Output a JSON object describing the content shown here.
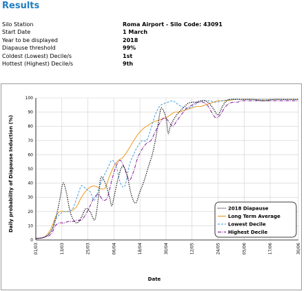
{
  "header": {
    "title": "Results"
  },
  "info": [
    {
      "label": "Silo Station",
      "value": "Roma Airport - Silo Code: 43091"
    },
    {
      "label": "Start Date",
      "value": "1 March"
    },
    {
      "label": "Year to be displayed",
      "value": "2018"
    },
    {
      "label": "Diapause threshold",
      "value": "99%"
    },
    {
      "label": "Coldest (Lowest) Decile/s",
      "value": "1st"
    },
    {
      "label": "Hottest (Highest) Decile/s",
      "value": "9th"
    }
  ],
  "chart_data": {
    "type": "line",
    "xlabel": "Date",
    "ylabel": "Daily probability of Diapause Induction (%)",
    "ylim": [
      0,
      100
    ],
    "yticks": [
      0,
      10,
      20,
      30,
      40,
      50,
      60,
      70,
      80,
      90,
      100
    ],
    "x_tick_labels": [
      "01/03",
      "13/03",
      "25/03",
      "06/04",
      "18/04",
      "30/04",
      "12/05",
      "24/05",
      "05/06",
      "17/06",
      "30/06"
    ],
    "x_days": [
      0,
      12,
      24,
      36,
      48,
      60,
      72,
      84,
      96,
      108,
      121
    ],
    "legend_position": "bottom-right",
    "series": [
      {
        "name": "2018 Diapause",
        "color": "#000000",
        "dash": "1.2,1.6",
        "points": [
          [
            0,
            1
          ],
          [
            4,
            2
          ],
          [
            7,
            6
          ],
          [
            9,
            14
          ],
          [
            11,
            28
          ],
          [
            12.5,
            40
          ],
          [
            14,
            34
          ],
          [
            15.5,
            22
          ],
          [
            17,
            15
          ],
          [
            19,
            12
          ],
          [
            21,
            16
          ],
          [
            23,
            22
          ],
          [
            25,
            20
          ],
          [
            27,
            14
          ],
          [
            28,
            20
          ],
          [
            29,
            32
          ],
          [
            30,
            44
          ],
          [
            32,
            40
          ],
          [
            34,
            30
          ],
          [
            35,
            24
          ],
          [
            36,
            30
          ],
          [
            38,
            44
          ],
          [
            40,
            52
          ],
          [
            42,
            46
          ],
          [
            44,
            32
          ],
          [
            46,
            26
          ],
          [
            48,
            34
          ],
          [
            50,
            42
          ],
          [
            52,
            52
          ],
          [
            54,
            62
          ],
          [
            56,
            78
          ],
          [
            57,
            88
          ],
          [
            58,
            93
          ],
          [
            60,
            86
          ],
          [
            61,
            75
          ],
          [
            62,
            80
          ],
          [
            64,
            86
          ],
          [
            66,
            90
          ],
          [
            68,
            93
          ],
          [
            70,
            96
          ],
          [
            72,
            97
          ],
          [
            74,
            97
          ],
          [
            76,
            98
          ],
          [
            78,
            98
          ],
          [
            80,
            96
          ],
          [
            82,
            92
          ],
          [
            84,
            88
          ],
          [
            86,
            94
          ],
          [
            88,
            98
          ],
          [
            90,
            99
          ],
          [
            95,
            99
          ],
          [
            100,
            99
          ],
          [
            105,
            98
          ],
          [
            110,
            99
          ],
          [
            115,
            99
          ],
          [
            121,
            99
          ]
        ]
      },
      {
        "name": "Long Term Average",
        "color": "#f0a030",
        "dash": "",
        "points": [
          [
            0,
            1
          ],
          [
            4,
            2
          ],
          [
            7,
            8
          ],
          [
            9,
            16
          ],
          [
            11,
            20
          ],
          [
            14,
            20
          ],
          [
            17,
            21
          ],
          [
            19,
            24
          ],
          [
            21,
            30
          ],
          [
            24,
            36
          ],
          [
            27,
            38
          ],
          [
            30,
            36
          ],
          [
            32,
            37
          ],
          [
            34,
            45
          ],
          [
            36,
            52
          ],
          [
            38,
            56
          ],
          [
            40,
            58
          ],
          [
            42,
            62
          ],
          [
            44,
            67
          ],
          [
            46,
            72
          ],
          [
            48,
            76
          ],
          [
            50,
            79
          ],
          [
            52,
            81
          ],
          [
            54,
            83
          ],
          [
            56,
            84
          ],
          [
            58,
            85
          ],
          [
            60,
            86
          ],
          [
            62,
            88
          ],
          [
            64,
            90
          ],
          [
            66,
            90
          ],
          [
            68,
            91
          ],
          [
            70,
            92
          ],
          [
            72,
            93
          ],
          [
            74,
            94
          ],
          [
            76,
            94
          ],
          [
            78,
            95
          ],
          [
            80,
            96
          ],
          [
            82,
            97
          ],
          [
            84,
            98
          ],
          [
            88,
            98
          ],
          [
            92,
            99
          ],
          [
            96,
            99
          ],
          [
            100,
            99
          ],
          [
            105,
            99
          ],
          [
            110,
            99
          ],
          [
            115,
            99
          ],
          [
            121,
            99
          ]
        ]
      },
      {
        "name": "Lowest Decile",
        "color": "#4fa6e0",
        "dash": "3,2",
        "points": [
          [
            0,
            1
          ],
          [
            4,
            2
          ],
          [
            7,
            6
          ],
          [
            9,
            14
          ],
          [
            11,
            18
          ],
          [
            13,
            20
          ],
          [
            15,
            20
          ],
          [
            17,
            22
          ],
          [
            19,
            30
          ],
          [
            21,
            38
          ],
          [
            23,
            36
          ],
          [
            25,
            34
          ],
          [
            27,
            28
          ],
          [
            29,
            36
          ],
          [
            31,
            44
          ],
          [
            33,
            50
          ],
          [
            35,
            56
          ],
          [
            37,
            52
          ],
          [
            39,
            40
          ],
          [
            41,
            38
          ],
          [
            43,
            52
          ],
          [
            45,
            60
          ],
          [
            47,
            66
          ],
          [
            49,
            70
          ],
          [
            51,
            70
          ],
          [
            53,
            78
          ],
          [
            55,
            88
          ],
          [
            57,
            94
          ],
          [
            59,
            96
          ],
          [
            61,
            97
          ],
          [
            63,
            98
          ],
          [
            65,
            96
          ],
          [
            67,
            94
          ],
          [
            69,
            93
          ],
          [
            71,
            93
          ],
          [
            73,
            95
          ],
          [
            75,
            97
          ],
          [
            77,
            98
          ],
          [
            80,
            98
          ],
          [
            83,
            97
          ],
          [
            86,
            98
          ],
          [
            90,
            99
          ],
          [
            95,
            99
          ],
          [
            100,
            99
          ],
          [
            105,
            99
          ],
          [
            110,
            99
          ],
          [
            115,
            99
          ],
          [
            121,
            99
          ]
        ]
      },
      {
        "name": "Highest Decile",
        "color": "#8a2aa0",
        "dash": "5,1.5,1,1.5",
        "points": [
          [
            0,
            1
          ],
          [
            4,
            2
          ],
          [
            7,
            4
          ],
          [
            9,
            10
          ],
          [
            11,
            12
          ],
          [
            13,
            12
          ],
          [
            15,
            13
          ],
          [
            17,
            13
          ],
          [
            19,
            14
          ],
          [
            21,
            14
          ],
          [
            23,
            18
          ],
          [
            25,
            24
          ],
          [
            27,
            30
          ],
          [
            29,
            32
          ],
          [
            31,
            28
          ],
          [
            33,
            30
          ],
          [
            35,
            42
          ],
          [
            37,
            52
          ],
          [
            39,
            56
          ],
          [
            41,
            50
          ],
          [
            43,
            42
          ],
          [
            45,
            48
          ],
          [
            47,
            58
          ],
          [
            49,
            64
          ],
          [
            51,
            68
          ],
          [
            53,
            70
          ],
          [
            55,
            76
          ],
          [
            57,
            82
          ],
          [
            59,
            86
          ],
          [
            61,
            84
          ],
          [
            63,
            80
          ],
          [
            65,
            84
          ],
          [
            67,
            88
          ],
          [
            69,
            92
          ],
          [
            71,
            94
          ],
          [
            73,
            96
          ],
          [
            75,
            97
          ],
          [
            77,
            97
          ],
          [
            79,
            95
          ],
          [
            81,
            90
          ],
          [
            83,
            86
          ],
          [
            85,
            88
          ],
          [
            87,
            93
          ],
          [
            89,
            96
          ],
          [
            91,
            97
          ],
          [
            93,
            97
          ],
          [
            95,
            98
          ],
          [
            100,
            98
          ],
          [
            105,
            98
          ],
          [
            110,
            98
          ],
          [
            115,
            98
          ],
          [
            121,
            98
          ]
        ]
      }
    ]
  }
}
